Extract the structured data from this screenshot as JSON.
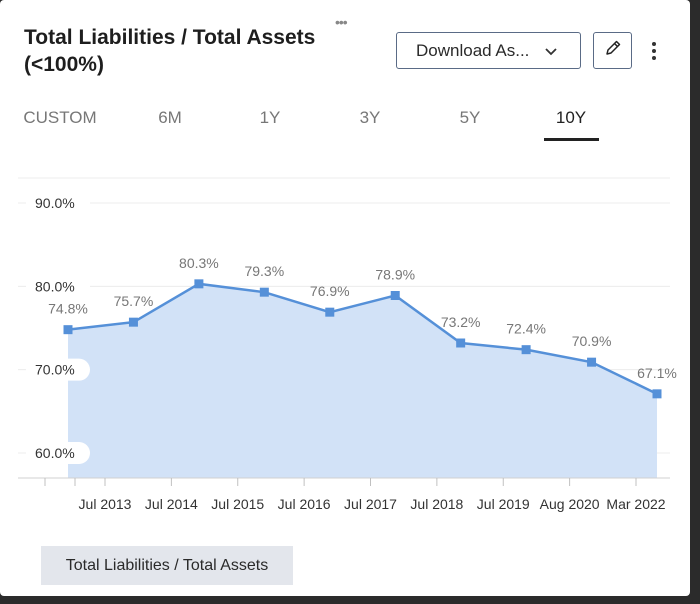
{
  "header": {
    "title": "Total Liabilities / Total Assets (<100%)",
    "download_label": "Download As...",
    "icons": {
      "download_chevron": "chevron-down-icon",
      "edit": "pencil-icon",
      "more": "more-vertical-icon"
    }
  },
  "tabs": [
    {
      "label": "CUSTOM",
      "active": false
    },
    {
      "label": "6M",
      "active": false
    },
    {
      "label": "1Y",
      "active": false
    },
    {
      "label": "3Y",
      "active": false
    },
    {
      "label": "5Y",
      "active": false
    },
    {
      "label": "10Y",
      "active": true
    }
  ],
  "chart_data": {
    "type": "area",
    "title": "",
    "x_tick_labels": [
      "Jul 2013",
      "Jul 2014",
      "Jul 2015",
      "Jul 2016",
      "Jul 2017",
      "Jul 2018",
      "Jul 2019",
      "Aug 2020",
      "Mar 2022"
    ],
    "y_tick_labels": [
      "90.0%",
      "80.0%",
      "70.0%",
      "60.0%"
    ],
    "ylim": [
      57,
      93
    ],
    "grid": true,
    "legend": "bottom-left",
    "series": [
      {
        "name": "Total Liabilities / Total Assets",
        "color": "#5590d8",
        "fill": "#d2e2f7",
        "values": [
          74.8,
          75.7,
          80.3,
          79.3,
          76.9,
          78.9,
          73.2,
          72.4,
          70.9,
          67.1
        ],
        "labels": [
          "74.8%",
          "75.7%",
          "80.3%",
          "79.3%",
          "76.9%",
          "78.9%",
          "73.2%",
          "72.4%",
          "70.9%",
          "67.1%"
        ]
      }
    ]
  },
  "legend": {
    "label": "Total Liabilities / Total Assets"
  }
}
